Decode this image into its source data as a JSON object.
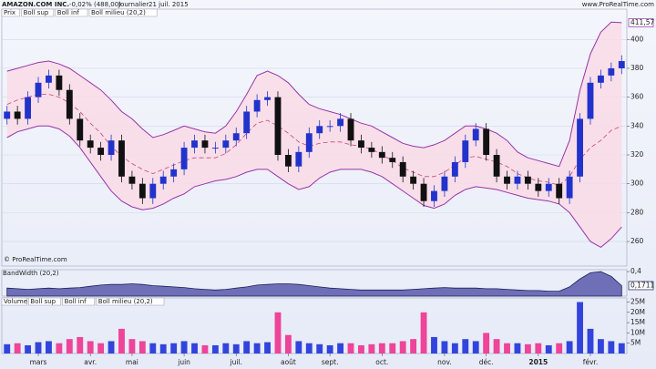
{
  "header": {
    "title": "AMAZON.COM INC.",
    "change": "-0,02% (488,00)",
    "period": "Journalier",
    "date": "21 juil. 2015",
    "source": "www.ProRealTime.com"
  },
  "copyright": "© ProRealTime.com",
  "chart_data": [
    {
      "type": "candlestick",
      "ylim": [
        243,
        421
      ],
      "yticks": [
        260,
        280,
        300,
        320,
        340,
        360,
        380,
        400
      ],
      "grid": true,
      "series": [
        {
          "name": "Prix",
          "up_color": "#2233cc",
          "down_color": "#111111",
          "open": [
            345,
            350,
            345,
            360,
            370,
            375,
            365,
            345,
            330,
            325,
            320,
            330,
            305,
            300,
            290,
            300,
            305,
            310,
            325,
            330,
            325,
            325,
            330,
            335,
            350,
            358,
            360,
            320,
            312,
            322,
            335,
            340,
            340,
            345,
            330,
            325,
            322,
            318,
            315,
            305,
            300,
            288,
            295,
            305,
            315,
            330,
            338,
            320,
            305,
            300,
            305,
            300,
            295,
            300,
            290,
            305,
            345,
            370,
            375,
            380
          ],
          "high": [
            354,
            354,
            364,
            374,
            379,
            379,
            369,
            349,
            334,
            329,
            334,
            334,
            309,
            304,
            304,
            309,
            314,
            329,
            334,
            334,
            329,
            334,
            339,
            354,
            362,
            364,
            364,
            324,
            326,
            339,
            344,
            344,
            349,
            349,
            334,
            329,
            326,
            322,
            319,
            309,
            304,
            299,
            309,
            319,
            334,
            342,
            342,
            324,
            309,
            309,
            309,
            304,
            304,
            304,
            309,
            349,
            374,
            379,
            384,
            389
          ],
          "low": [
            341,
            341,
            341,
            356,
            366,
            361,
            341,
            326,
            321,
            316,
            316,
            301,
            296,
            286,
            286,
            296,
            301,
            306,
            321,
            321,
            321,
            321,
            326,
            331,
            346,
            354,
            316,
            308,
            308,
            318,
            331,
            336,
            336,
            326,
            321,
            318,
            314,
            311,
            301,
            296,
            284,
            284,
            291,
            301,
            311,
            326,
            316,
            301,
            296,
            296,
            296,
            291,
            291,
            286,
            286,
            301,
            341,
            366,
            371,
            376
          ],
          "close": [
            350,
            345,
            360,
            370,
            375,
            365,
            345,
            330,
            325,
            320,
            330,
            305,
            300,
            290,
            300,
            305,
            310,
            325,
            330,
            325,
            325,
            330,
            335,
            350,
            358,
            360,
            320,
            312,
            322,
            335,
            340,
            340,
            345,
            330,
            325,
            322,
            318,
            315,
            305,
            300,
            288,
            295,
            305,
            315,
            330,
            338,
            320,
            305,
            300,
            305,
            300,
            295,
            300,
            290,
            305,
            345,
            370,
            375,
            380,
            385
          ]
        },
        {
          "name": "Boll sup",
          "color": "#9933aa",
          "last_value_label": "411,57",
          "values": [
            378,
            380,
            382,
            384,
            385,
            383,
            380,
            375,
            370,
            365,
            358,
            350,
            345,
            338,
            332,
            334,
            337,
            340,
            338,
            336,
            335,
            340,
            350,
            362,
            375,
            378,
            375,
            370,
            362,
            355,
            352,
            350,
            348,
            345,
            342,
            340,
            336,
            332,
            328,
            326,
            325,
            327,
            330,
            335,
            340,
            340,
            338,
            335,
            330,
            322,
            318,
            316,
            314,
            312,
            330,
            365,
            390,
            405,
            412,
            411.57
          ]
        },
        {
          "name": "Boll inf",
          "color": "#9933aa",
          "values": [
            332,
            336,
            338,
            340,
            340,
            338,
            333,
            325,
            315,
            305,
            295,
            288,
            284,
            282,
            283,
            286,
            290,
            293,
            298,
            300,
            302,
            303,
            305,
            308,
            310,
            310,
            305,
            300,
            296,
            298,
            304,
            308,
            310,
            310,
            310,
            308,
            305,
            300,
            295,
            290,
            285,
            283,
            286,
            292,
            296,
            298,
            297,
            296,
            294,
            292,
            290,
            289,
            288,
            286,
            280,
            270,
            260,
            256,
            262,
            270
          ]
        },
        {
          "name": "Boll milieu (20,2)",
          "color": "#cc4477",
          "values": [
            355,
            358,
            360,
            362,
            362,
            360,
            356,
            350,
            342,
            335,
            326,
            319,
            314,
            310,
            307,
            310,
            313,
            316,
            318,
            318,
            318,
            321,
            327,
            335,
            342,
            344,
            340,
            335,
            329,
            326,
            328,
            329,
            329,
            327,
            326,
            324,
            320,
            316,
            311,
            308,
            305,
            305,
            308,
            313,
            318,
            319,
            317,
            315,
            312,
            307,
            304,
            302,
            301,
            299,
            305,
            317,
            325,
            330,
            337,
            340
          ]
        }
      ],
      "band_fill": "#f9dbe5"
    },
    {
      "type": "area",
      "title": "BandWidth (20,2)",
      "color": "#6f6fb8",
      "line_color": "#1e1e5a",
      "ylim": [
        0,
        0.43
      ],
      "yticks": [
        {
          "value": 0.4,
          "label": "0,4"
        }
      ],
      "last_value_label": "0,1711",
      "values": [
        0.13,
        0.12,
        0.11,
        0.12,
        0.13,
        0.12,
        0.13,
        0.14,
        0.16,
        0.18,
        0.19,
        0.19,
        0.2,
        0.19,
        0.17,
        0.16,
        0.15,
        0.14,
        0.12,
        0.11,
        0.1,
        0.11,
        0.13,
        0.15,
        0.18,
        0.19,
        0.2,
        0.2,
        0.19,
        0.17,
        0.15,
        0.13,
        0.12,
        0.11,
        0.1,
        0.1,
        0.1,
        0.1,
        0.1,
        0.11,
        0.12,
        0.13,
        0.14,
        0.13,
        0.13,
        0.13,
        0.12,
        0.12,
        0.11,
        0.1,
        0.09,
        0.09,
        0.08,
        0.08,
        0.15,
        0.28,
        0.38,
        0.4,
        0.32,
        0.1711
      ]
    },
    {
      "type": "bar",
      "legend": [
        "Volume",
        "Boll sup",
        "Boll inf",
        "Boll milieu (20,2)"
      ],
      "up_color": "#3344dd",
      "down_color": "#ee4499",
      "ylim": [
        0,
        27000000
      ],
      "yticks": [
        {
          "value": 5000000,
          "label": "5M"
        },
        {
          "value": 10000000,
          "label": "10M"
        },
        {
          "value": 15000000,
          "label": "15M"
        },
        {
          "value": 20000000,
          "label": "20M"
        },
        {
          "value": 25000000,
          "label": "25M"
        }
      ],
      "categories": [
        null,
        null,
        null,
        "mars",
        null,
        null,
        null,
        null,
        "avr.",
        null,
        null,
        null,
        "mai",
        null,
        null,
        null,
        null,
        "juin",
        null,
        null,
        null,
        null,
        "juil.",
        null,
        null,
        null,
        null,
        "août",
        null,
        null,
        null,
        "sept.",
        null,
        null,
        null,
        null,
        "oct.",
        null,
        null,
        null,
        null,
        null,
        "nov.",
        null,
        null,
        null,
        "déc.",
        null,
        null,
        null,
        null,
        "2015",
        null,
        null,
        null,
        null,
        "févr.",
        null,
        null,
        null
      ],
      "values": [
        4500000,
        5000000,
        4000000,
        5500000,
        6000000,
        5000000,
        7000000,
        8000000,
        6000000,
        5000000,
        6000000,
        12000000,
        7000000,
        6000000,
        5000000,
        4500000,
        5000000,
        6000000,
        5000000,
        4000000,
        4000000,
        5000000,
        4500000,
        6000000,
        5000000,
        5500000,
        20000000,
        9000000,
        6000000,
        5000000,
        4500000,
        4000000,
        5000000,
        5000000,
        4000000,
        4500000,
        5000000,
        5000000,
        6000000,
        7000000,
        20000000,
        8000000,
        6000000,
        5000000,
        7000000,
        6000000,
        10000000,
        7000000,
        5000000,
        5000000,
        4500000,
        5000000,
        4000000,
        5000000,
        6000000,
        25000000,
        12000000,
        7000000,
        6000000,
        5000000
      ]
    }
  ]
}
